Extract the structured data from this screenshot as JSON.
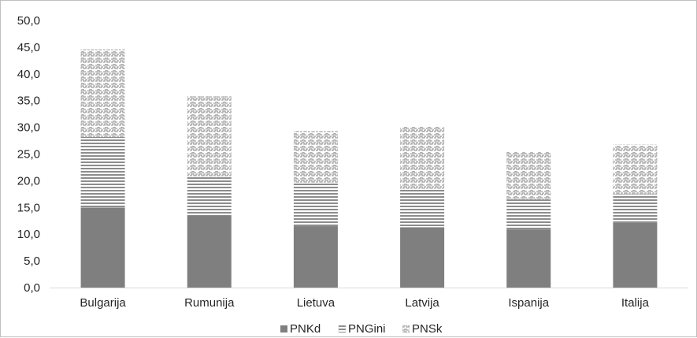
{
  "chart_data": {
    "type": "bar",
    "stacked": true,
    "categories": [
      "Bulgarija",
      "Rumunija",
      "Lietuva",
      "Latvija",
      "Ispanija",
      "Italija"
    ],
    "series": [
      {
        "name": "PNKd",
        "values": [
          15.0,
          13.5,
          11.5,
          11.3,
          10.9,
          12.2
        ],
        "color": "#7f7f7f",
        "pattern": "solid"
      },
      {
        "name": "PNGini",
        "values": [
          13.2,
          7.2,
          8.0,
          7.2,
          5.6,
          5.3
        ],
        "color": "#8c8c8c",
        "pattern": "horizontal-stripes"
      },
      {
        "name": "PNSk",
        "values": [
          16.4,
          15.1,
          9.8,
          11.6,
          8.9,
          9.3
        ],
        "color": "#a6a6a6",
        "pattern": "zigzag"
      }
    ],
    "y_ticks": [
      "0,0",
      "5,0",
      "10,0",
      "15,0",
      "20,0",
      "25,0",
      "30,0",
      "35,0",
      "40,0",
      "45,0",
      "50,0"
    ],
    "ylim": [
      0,
      50
    ],
    "y_step": 5,
    "xlabel": "",
    "ylabel": "",
    "title": "",
    "grid": false,
    "legend_position": "bottom"
  }
}
